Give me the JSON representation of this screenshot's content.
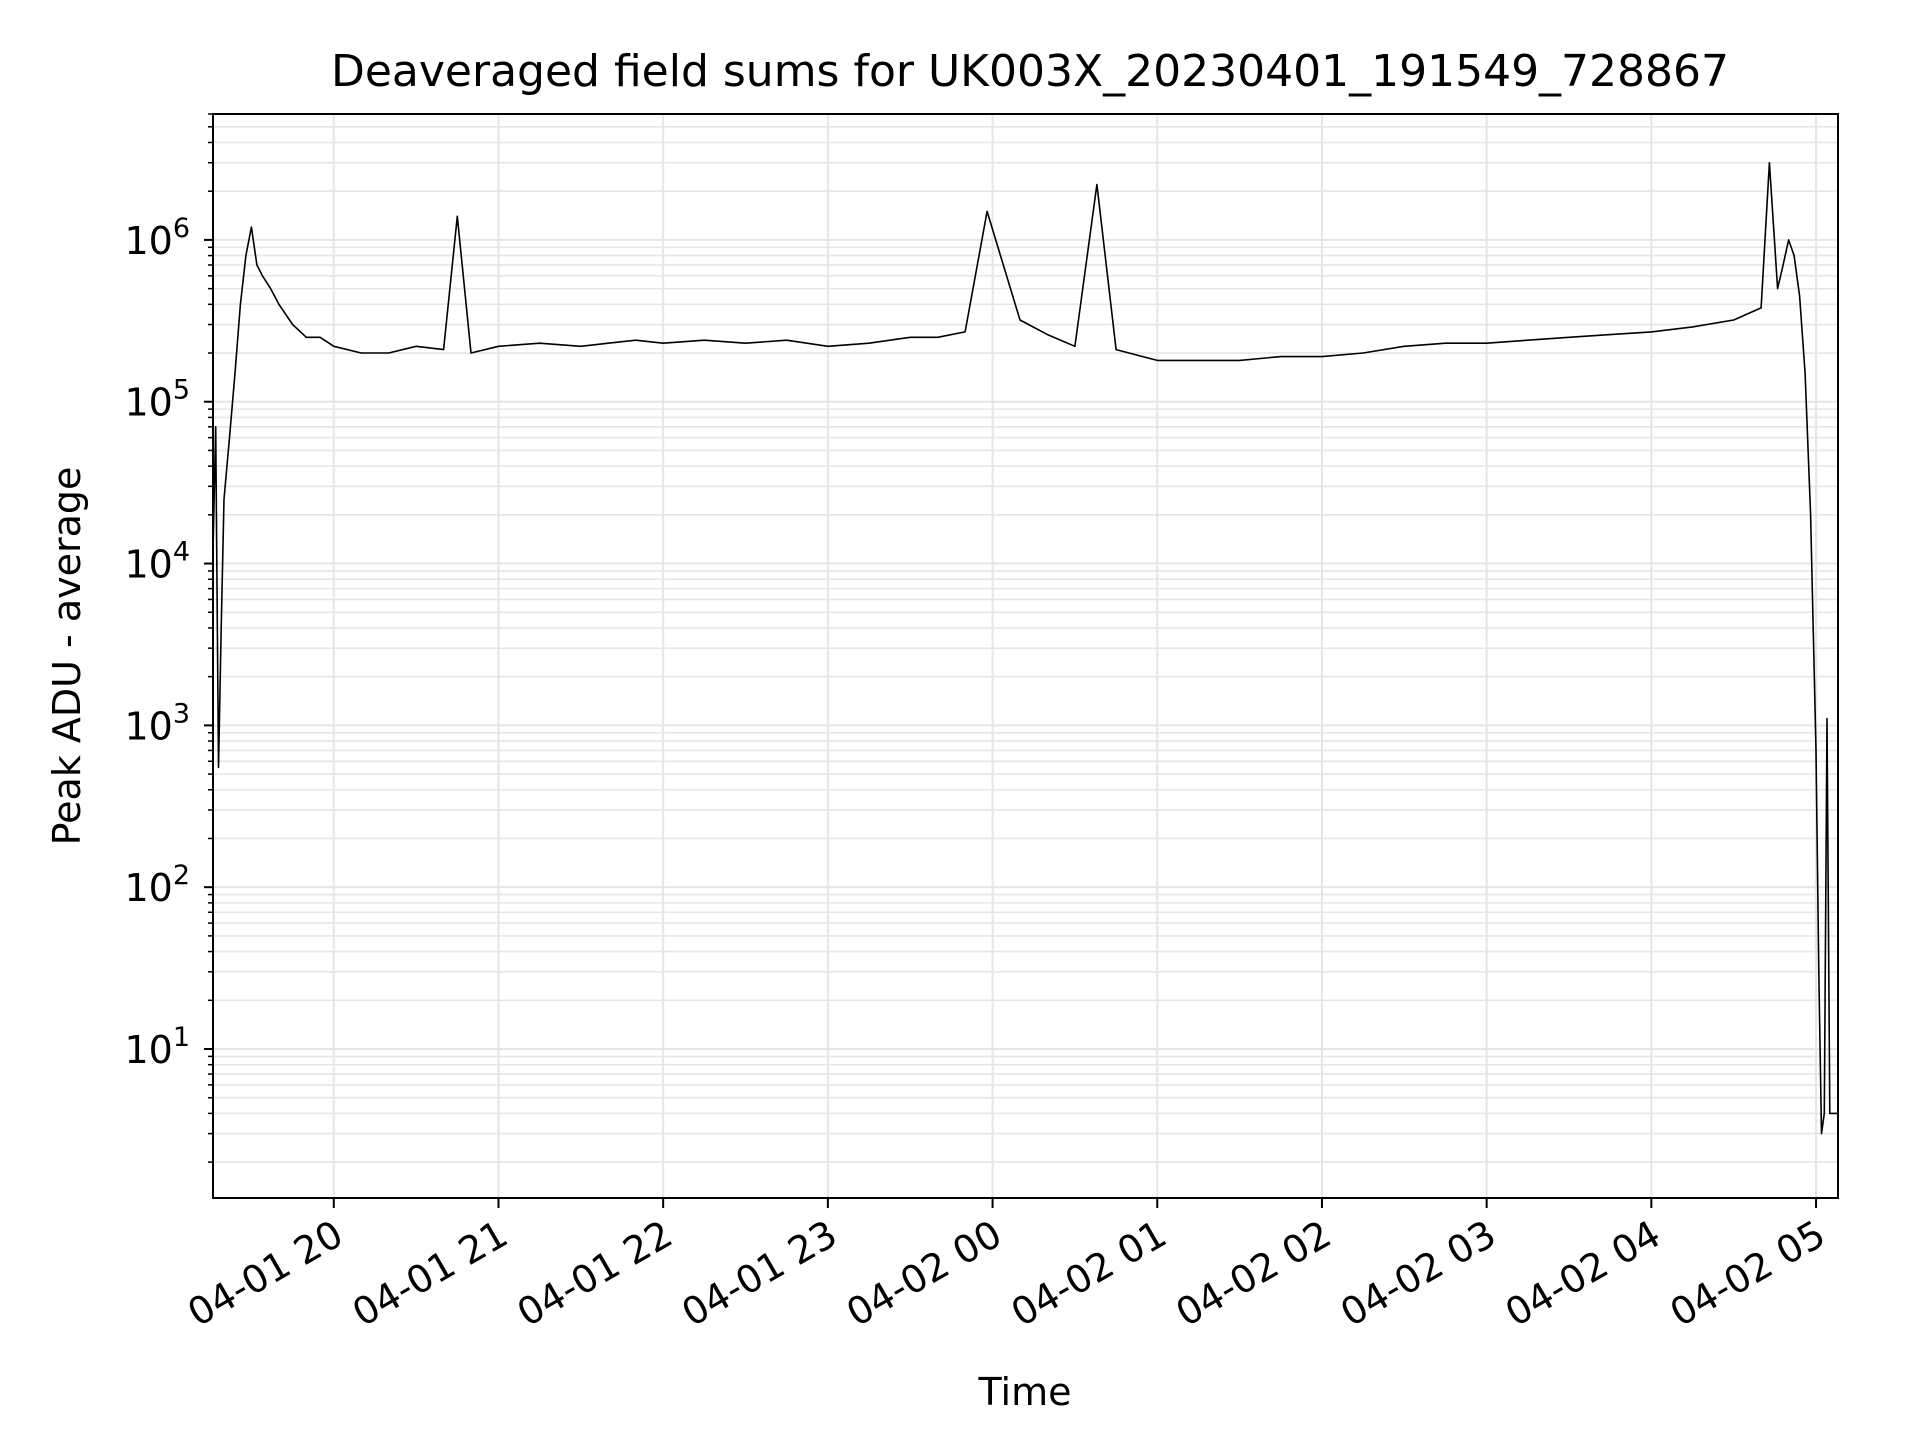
{
  "chart_data": {
    "type": "line",
    "title": "Deaveraged field sums for UK003X_20230401_191549_728867",
    "xlabel": "Time",
    "ylabel": "Peak ADU - average",
    "y_scale": "log",
    "ylim": [
      1.2,
      6000000
    ],
    "xlim": [
      "2023-04-01 19:16",
      "2023-04-02 05:08"
    ],
    "x_ticks": [
      {
        "label": "04-01 20",
        "t": "2023-04-01 20:00"
      },
      {
        "label": "04-01 21",
        "t": "2023-04-01 21:00"
      },
      {
        "label": "04-01 22",
        "t": "2023-04-01 22:00"
      },
      {
        "label": "04-01 23",
        "t": "2023-04-01 23:00"
      },
      {
        "label": "04-02 00",
        "t": "2023-04-02 00:00"
      },
      {
        "label": "04-02 01",
        "t": "2023-04-02 01:00"
      },
      {
        "label": "04-02 02",
        "t": "2023-04-02 02:00"
      },
      {
        "label": "04-02 03",
        "t": "2023-04-02 03:00"
      },
      {
        "label": "04-02 04",
        "t": "2023-04-02 04:00"
      },
      {
        "label": "04-02 05",
        "t": "2023-04-02 05:00"
      }
    ],
    "y_ticks": [
      {
        "base": "10",
        "exp": "1",
        "value": 10
      },
      {
        "base": "10",
        "exp": "2",
        "value": 100
      },
      {
        "base": "10",
        "exp": "3",
        "value": 1000
      },
      {
        "base": "10",
        "exp": "4",
        "value": 10000
      },
      {
        "base": "10",
        "exp": "5",
        "value": 100000
      },
      {
        "base": "10",
        "exp": "6",
        "value": 1000000
      }
    ],
    "grid": true,
    "line_color": "#000000",
    "grid_color": "#e6e6e6",
    "series": [
      {
        "x": [
          "2023-04-01 19:16",
          "2023-04-01 19:17",
          "2023-04-01 19:18",
          "2023-04-01 19:19",
          "2023-04-01 19:20",
          "2023-04-01 19:22",
          "2023-04-01 19:24",
          "2023-04-01 19:26",
          "2023-04-01 19:28",
          "2023-04-01 19:30",
          "2023-04-01 19:32",
          "2023-04-01 19:34",
          "2023-04-01 19:37",
          "2023-04-01 19:40",
          "2023-04-01 19:45",
          "2023-04-01 19:50",
          "2023-04-01 19:55",
          "2023-04-01 20:00",
          "2023-04-01 20:10",
          "2023-04-01 20:20",
          "2023-04-01 20:30",
          "2023-04-01 20:40",
          "2023-04-01 20:45",
          "2023-04-01 20:50",
          "2023-04-01 21:00",
          "2023-04-01 21:15",
          "2023-04-01 21:30",
          "2023-04-01 21:40",
          "2023-04-01 21:50",
          "2023-04-01 22:00",
          "2023-04-01 22:15",
          "2023-04-01 22:30",
          "2023-04-01 22:45",
          "2023-04-01 23:00",
          "2023-04-01 23:15",
          "2023-04-01 23:30",
          "2023-04-01 23:40",
          "2023-04-01 23:50",
          "2023-04-01 23:58",
          "2023-04-02 00:10",
          "2023-04-02 00:20",
          "2023-04-02 00:30",
          "2023-04-02 00:38",
          "2023-04-02 00:45",
          "2023-04-02 01:00",
          "2023-04-02 01:15",
          "2023-04-02 01:30",
          "2023-04-02 01:45",
          "2023-04-02 02:00",
          "2023-04-02 02:15",
          "2023-04-02 02:30",
          "2023-04-02 02:45",
          "2023-04-02 03:00",
          "2023-04-02 03:15",
          "2023-04-02 03:30",
          "2023-04-02 03:45",
          "2023-04-02 04:00",
          "2023-04-02 04:15",
          "2023-04-02 04:30",
          "2023-04-02 04:40",
          "2023-04-02 04:43",
          "2023-04-02 04:46",
          "2023-04-02 04:48",
          "2023-04-02 04:50",
          "2023-04-02 04:52",
          "2023-04-02 04:54",
          "2023-04-02 04:56",
          "2023-04-02 04:58",
          "2023-04-02 05:00",
          "2023-04-02 05:01",
          "2023-04-02 05:02",
          "2023-04-02 05:03",
          "2023-04-02 05:04",
          "2023-04-02 05:05",
          "2023-04-02 05:06",
          "2023-04-02 05:08"
        ],
        "y": [
          12000,
          70000,
          550,
          4000,
          25000,
          60000,
          150000,
          400000,
          800000,
          1200000,
          700000,
          600000,
          500000,
          400000,
          300000,
          250000,
          250000,
          220000,
          200000,
          200000,
          220000,
          210000,
          1400000,
          200000,
          220000,
          230000,
          220000,
          230000,
          240000,
          230000,
          240000,
          230000,
          240000,
          220000,
          230000,
          250000,
          250000,
          270000,
          1500000,
          320000,
          260000,
          220000,
          2200000,
          210000,
          180000,
          180000,
          180000,
          190000,
          190000,
          200000,
          220000,
          230000,
          230000,
          240000,
          250000,
          260000,
          270000,
          290000,
          320000,
          380000,
          3000000,
          500000,
          700000,
          1000000,
          800000,
          450000,
          150000,
          20000,
          700,
          30,
          3,
          4,
          1100,
          4,
          4,
          4
        ]
      }
    ]
  }
}
